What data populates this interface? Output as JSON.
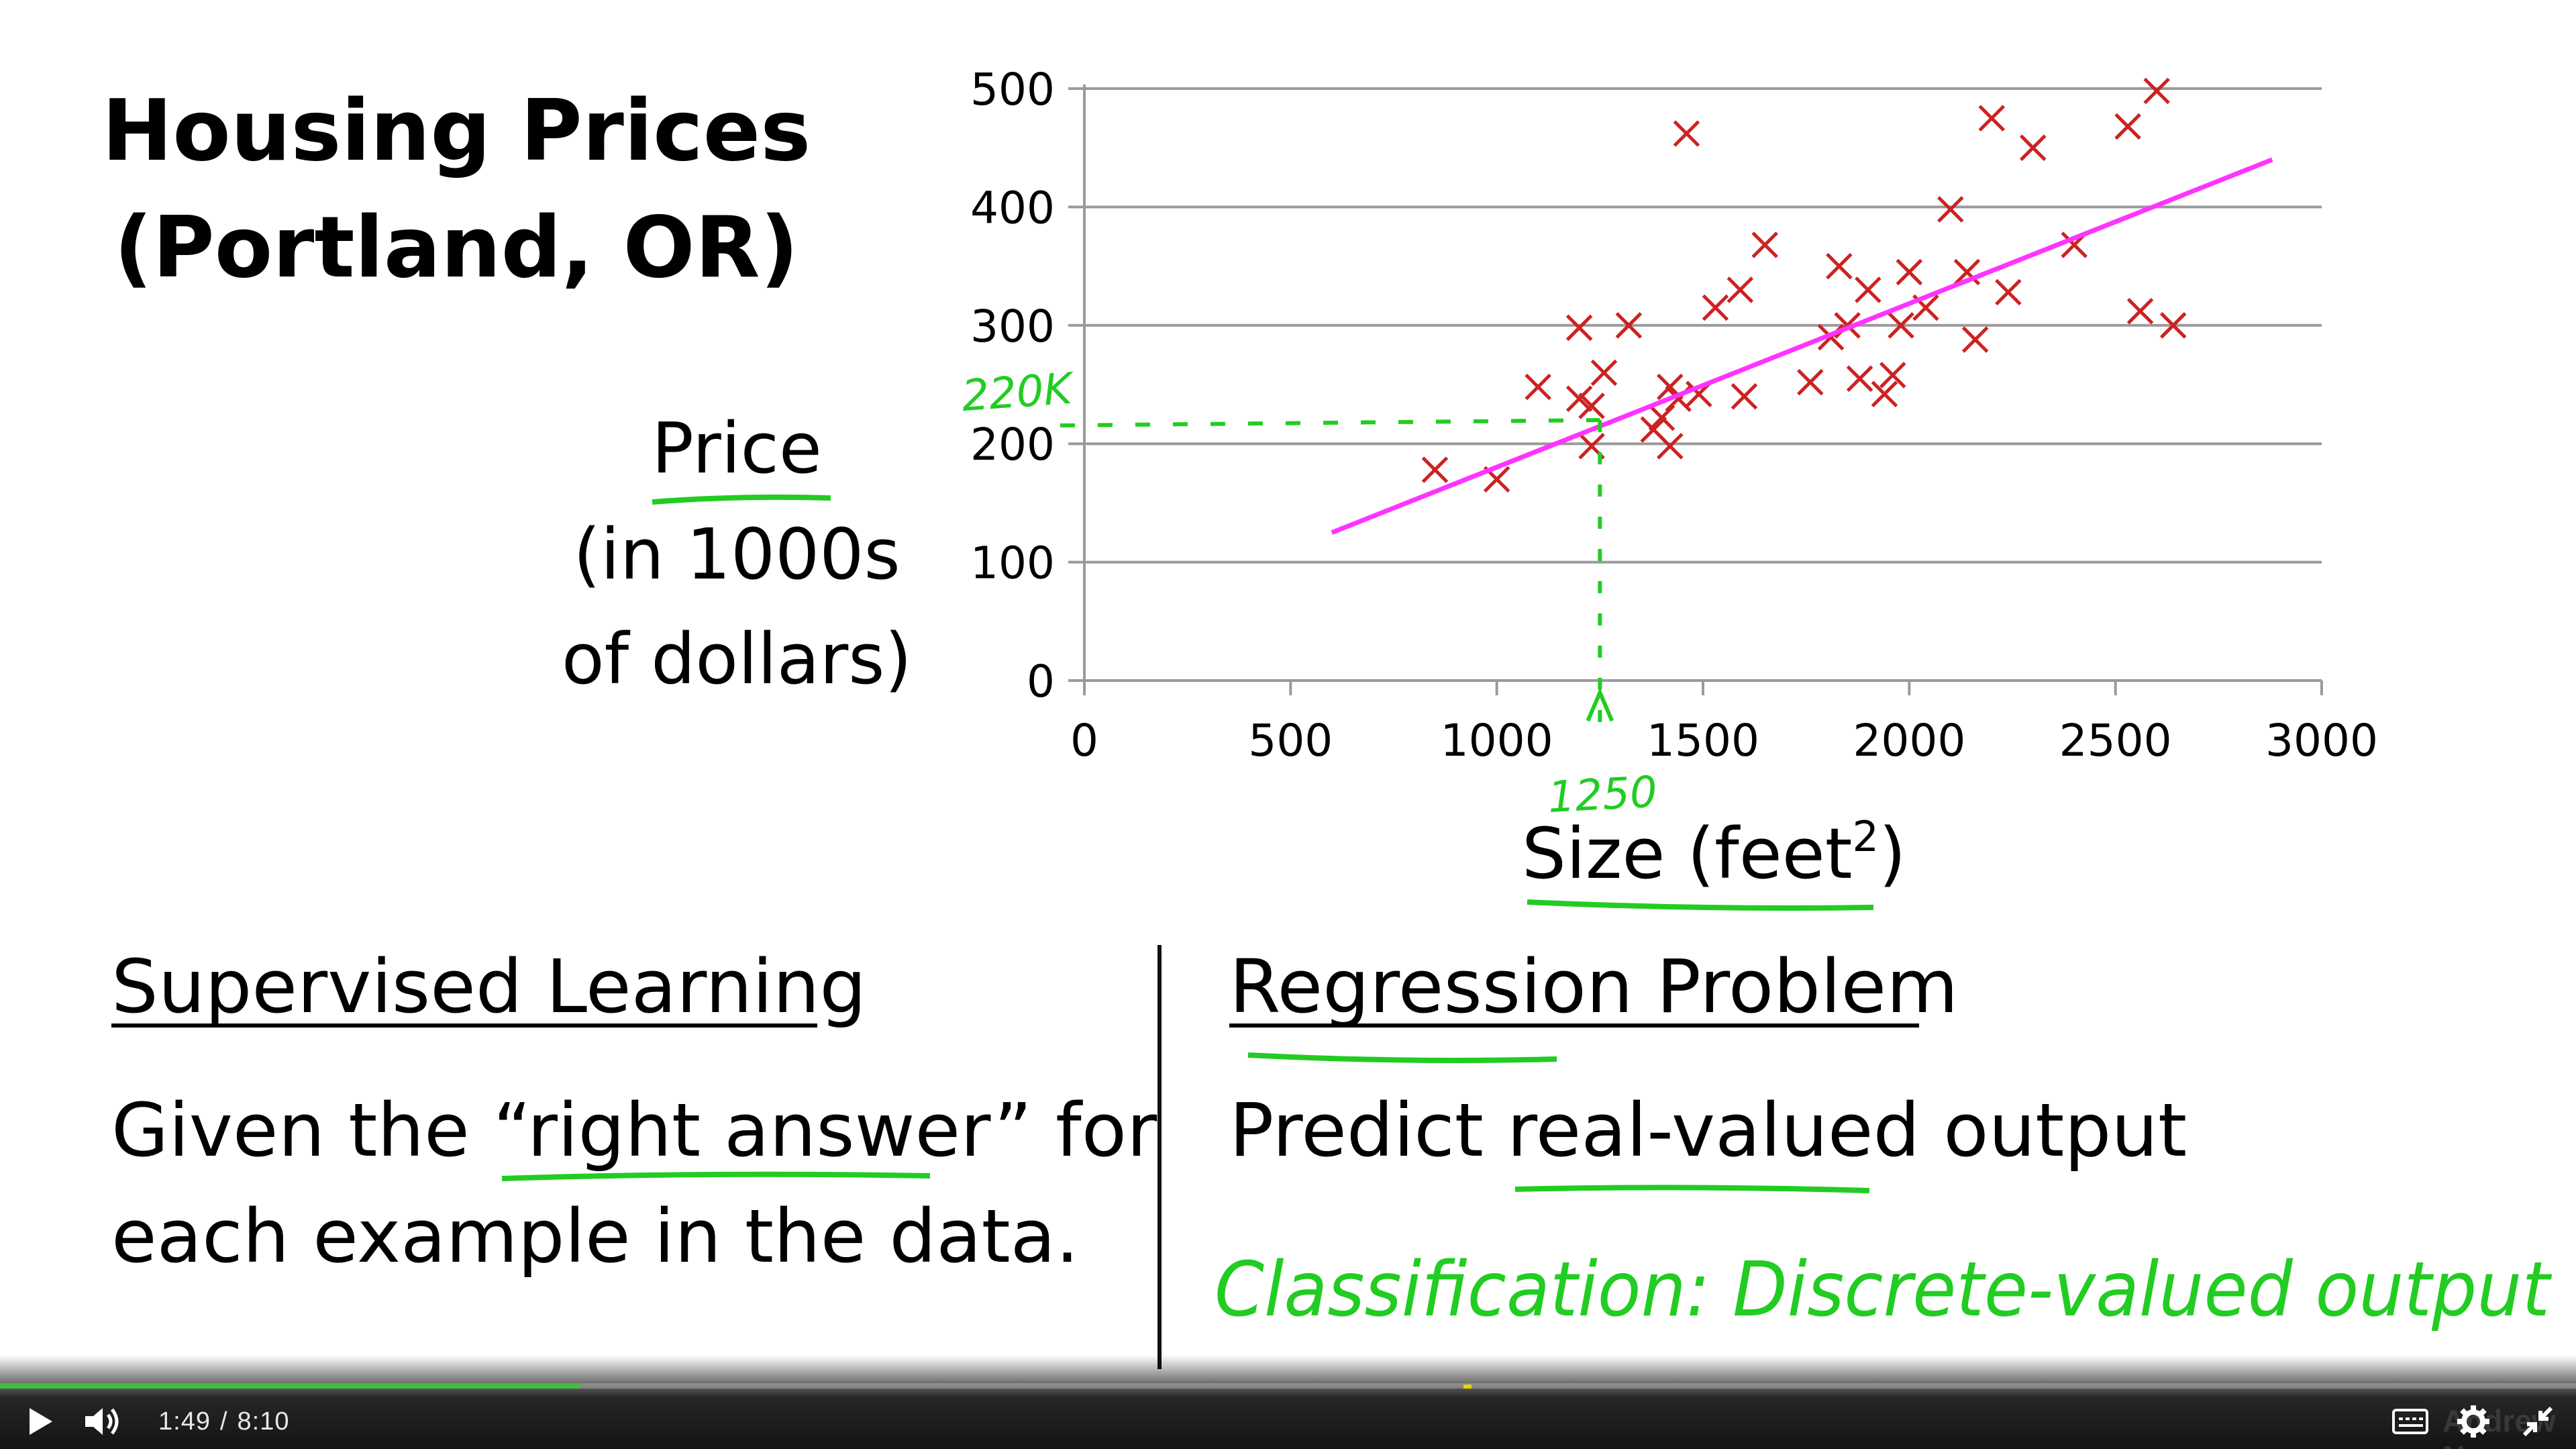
{
  "slide": {
    "title_line1": "Housing Prices",
    "title_line2": "(Portland, OR)",
    "ylabel_line1": "Price",
    "ylabel_line2": "(in 1000s",
    "ylabel_line3": "of dollars)",
    "xlabel_base": "Size (feet",
    "xlabel_sup": "2",
    "xlabel_close": ")",
    "left_heading": "Supervised Learning",
    "left_body_line1_pre": "Given the “",
    "left_body_line1_em": "right answer",
    "left_body_line1_post": "” for",
    "left_body_line2": "each example in the data.",
    "right_heading": "Regression Problem",
    "right_body_pre": "Predict ",
    "right_body_em": "real-valued",
    "right_body_post": " output"
  },
  "annotations": {
    "y_marker": "220K",
    "x_marker": "1250",
    "classification_note": "Classification: Discrete-valued output",
    "ink_color": "#22cc22",
    "fit_color": "#ff33ff"
  },
  "chart_data": {
    "type": "scatter",
    "xlim": [
      0,
      3000
    ],
    "ylim": [
      0,
      500
    ],
    "x_ticks": [
      "0",
      "500",
      "1000",
      "1500",
      "2000",
      "2500",
      "3000"
    ],
    "y_ticks": [
      "0",
      "100",
      "200",
      "300",
      "400",
      "500"
    ],
    "grid": "horizontal",
    "marker": "x",
    "marker_color": "#cc2222",
    "points": [
      [
        850,
        178
      ],
      [
        1000,
        170
      ],
      [
        1100,
        248
      ],
      [
        1200,
        298
      ],
      [
        1200,
        238
      ],
      [
        1230,
        232
      ],
      [
        1230,
        198
      ],
      [
        1260,
        260
      ],
      [
        1320,
        300
      ],
      [
        1380,
        212
      ],
      [
        1400,
        222
      ],
      [
        1420,
        198
      ],
      [
        1420,
        248
      ],
      [
        1440,
        238
      ],
      [
        1460,
        462
      ],
      [
        1490,
        242
      ],
      [
        1530,
        315
      ],
      [
        1590,
        330
      ],
      [
        1600,
        240
      ],
      [
        1650,
        368
      ],
      [
        1760,
        252
      ],
      [
        1810,
        290
      ],
      [
        1830,
        350
      ],
      [
        1850,
        300
      ],
      [
        1880,
        255
      ],
      [
        1900,
        330
      ],
      [
        1940,
        242
      ],
      [
        1960,
        258
      ],
      [
        1980,
        300
      ],
      [
        2000,
        345
      ],
      [
        2040,
        315
      ],
      [
        2100,
        398
      ],
      [
        2140,
        345
      ],
      [
        2160,
        288
      ],
      [
        2200,
        475
      ],
      [
        2240,
        328
      ],
      [
        2300,
        450
      ],
      [
        2400,
        368
      ],
      [
        2530,
        468
      ],
      [
        2560,
        312
      ],
      [
        2600,
        498
      ],
      [
        2640,
        300
      ]
    ],
    "fit_line": [
      [
        600,
        125
      ],
      [
        2880,
        440
      ]
    ],
    "highlight": {
      "x": 1250,
      "y": 220
    }
  },
  "player": {
    "current_time": "1:49",
    "separator": "/",
    "duration": "8:10",
    "progress_fraction": 0.225,
    "marker_fraction": 0.568,
    "play_icon": "play-icon",
    "volume_icon": "volume-icon",
    "captions_icon": "captions-icon",
    "settings_icon": "gear-icon",
    "exit_fullscreen_icon": "exit-fullscreen-icon",
    "watermark": "Andrew Ng"
  }
}
